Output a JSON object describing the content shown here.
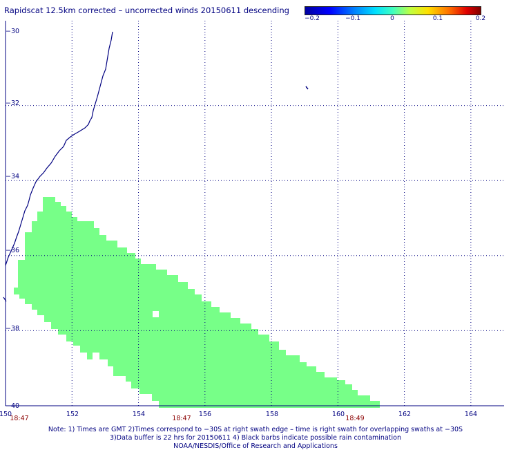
{
  "title": "Rapidscat 12.5km corrected – uncorrected winds 20150611 descending",
  "colorbar": {
    "ticks": [
      "−0.2",
      "−0.1",
      "0",
      "0.1",
      "0.2"
    ]
  },
  "map": {
    "lon_ticks": [
      "150",
      "152",
      "154",
      "156",
      "158",
      "160",
      "162",
      "164"
    ],
    "lat_ticks": [
      "−30",
      "−32",
      "−34",
      "−36",
      "−38",
      "−40"
    ],
    "lon_range": [
      150,
      165
    ],
    "lat_range": [
      -40,
      -30
    ],
    "grid": "dotted",
    "coastline_color": "#000080",
    "swath_color": "#77ff88"
  },
  "time_labels": [
    "18:47",
    "18:47",
    "18:49"
  ],
  "notes": [
    "Note: 1) Times are GMT 2)Times correspond to −30S at right swath edge – time is right swath for overlapping swaths at −30S",
    "3)Data buffer is 22 hrs for 20150611 4) Black barbs indicate possible rain contamination",
    "NOAA/NESDIS/Office of Research and Applications"
  ]
}
